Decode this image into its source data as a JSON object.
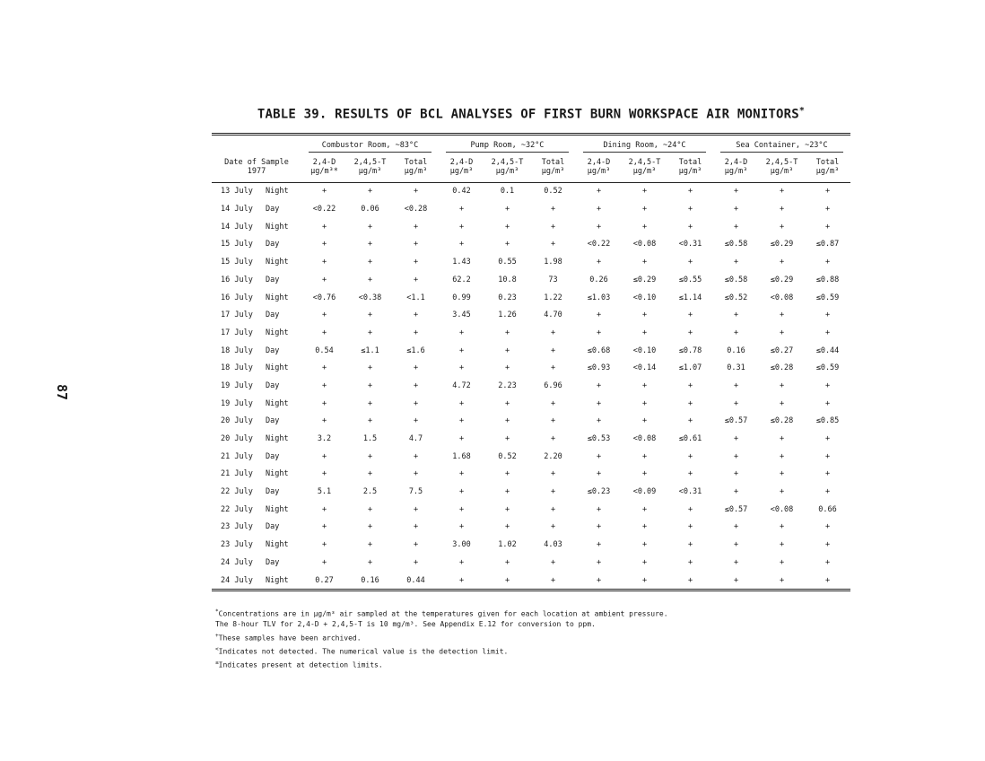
{
  "page_number": "87",
  "title": "TABLE 39.  RESULTS OF BCL ANALYSES OF FIRST BURN WORKSPACE AIR MONITORS",
  "title_mark": "*",
  "table": {
    "date_header": "Date of Sample",
    "date_year": "1977",
    "groups": [
      "Combustor Room, ~83°C",
      "Pump Room, ~32°C",
      "Dining Room, ~24°C",
      "Sea Container, ~23°C"
    ],
    "columns": [
      {
        "name": "2,4-D",
        "unit": "µg/m³*"
      },
      {
        "name": "2,4,5-T",
        "unit": "µg/m³"
      },
      {
        "name": "Total",
        "unit": "µg/m³"
      },
      {
        "name": "2,4-D",
        "unit": "µg/m³"
      },
      {
        "name": "2,4,5-T",
        "unit": "µg/m³"
      },
      {
        "name": "Total",
        "unit": "µg/m³"
      },
      {
        "name": "2,4-D",
        "unit": "µg/m³"
      },
      {
        "name": "2,4,5-T",
        "unit": "µg/m³"
      },
      {
        "name": "Total",
        "unit": "µg/m³"
      },
      {
        "name": "2,4-D",
        "unit": "µg/m³"
      },
      {
        "name": "2,4,5-T",
        "unit": "µg/m³"
      },
      {
        "name": "Total",
        "unit": "µg/m³"
      }
    ],
    "rows": [
      {
        "date": "13 July",
        "tod": "Night",
        "v": [
          "+",
          "+",
          "+",
          "0.42",
          "0.1",
          "0.52",
          "+",
          "+",
          "+",
          "+",
          "+",
          "+"
        ]
      },
      {
        "date": "14 July",
        "tod": "Day",
        "v": [
          "<0.22",
          "0.06",
          "<0.28",
          "+",
          "+",
          "+",
          "+",
          "+",
          "+",
          "+",
          "+",
          "+"
        ]
      },
      {
        "date": "14 July",
        "tod": "Night",
        "v": [
          "+",
          "+",
          "+",
          "+",
          "+",
          "+",
          "+",
          "+",
          "+",
          "+",
          "+",
          "+"
        ]
      },
      {
        "date": "15 July",
        "tod": "Day",
        "v": [
          "+",
          "+",
          "+",
          "+",
          "+",
          "+",
          "<0.22",
          "<0.08",
          "<0.31",
          "≤0.58",
          "≤0.29",
          "≤0.87"
        ]
      },
      {
        "date": "15 July",
        "tod": "Night",
        "v": [
          "+",
          "+",
          "+",
          "1.43",
          "0.55",
          "1.98",
          "+",
          "+",
          "+",
          "+",
          "+",
          "+"
        ]
      },
      {
        "date": "16 July",
        "tod": "Day",
        "v": [
          "+",
          "+",
          "+",
          "62.2",
          "10.8",
          "73",
          "0.26",
          "≤0.29",
          "≤0.55",
          "≤0.58",
          "≤0.29",
          "≤0.88"
        ]
      },
      {
        "date": "16 July",
        "tod": "Night",
        "v": [
          "<0.76",
          "<0.38",
          "<1.1",
          "0.99",
          "0.23",
          "1.22",
          "≤1.03",
          "<0.10",
          "≤1.14",
          "≤0.52",
          "<0.08",
          "≤0.59"
        ]
      },
      {
        "date": "17 July",
        "tod": "Day",
        "v": [
          "+",
          "+",
          "+",
          "3.45",
          "1.26",
          "4.70",
          "+",
          "+",
          "+",
          "+",
          "+",
          "+"
        ]
      },
      {
        "date": "17 July",
        "tod": "Night",
        "v": [
          "+",
          "+",
          "+",
          "+",
          "+",
          "+",
          "+",
          "+",
          "+",
          "+",
          "+",
          "+"
        ]
      },
      {
        "date": "18 July",
        "tod": "Day",
        "v": [
          "0.54",
          "≤1.1",
          "≤1.6",
          "+",
          "+",
          "+",
          "≤0.68",
          "<0.10",
          "≤0.78",
          "0.16",
          "≤0.27",
          "≤0.44"
        ]
      },
      {
        "date": "18 July",
        "tod": "Night",
        "v": [
          "+",
          "+",
          "+",
          "+",
          "+",
          "+",
          "≤0.93",
          "<0.14",
          "≤1.07",
          "0.31",
          "≤0.28",
          "≤0.59"
        ]
      },
      {
        "date": "19 July",
        "tod": "Day",
        "v": [
          "+",
          "+",
          "+",
          "4.72",
          "2.23",
          "6.96",
          "+",
          "+",
          "+",
          "+",
          "+",
          "+"
        ]
      },
      {
        "date": "19 July",
        "tod": "Night",
        "v": [
          "+",
          "+",
          "+",
          "+",
          "+",
          "+",
          "+",
          "+",
          "+",
          "+",
          "+",
          "+"
        ]
      },
      {
        "date": "20 July",
        "tod": "Day",
        "v": [
          "+",
          "+",
          "+",
          "+",
          "+",
          "+",
          "+",
          "+",
          "+",
          "≤0.57",
          "≤0.28",
          "≤0.85"
        ]
      },
      {
        "date": "20 July",
        "tod": "Night",
        "v": [
          "3.2",
          "1.5",
          "4.7",
          "+",
          "+",
          "+",
          "≤0.53",
          "<0.08",
          "≤0.61",
          "+",
          "+",
          "+"
        ]
      },
      {
        "date": "21 July",
        "tod": "Day",
        "v": [
          "+",
          "+",
          "+",
          "1.68",
          "0.52",
          "2.20",
          "+",
          "+",
          "+",
          "+",
          "+",
          "+"
        ]
      },
      {
        "date": "21 July",
        "tod": "Night",
        "v": [
          "+",
          "+",
          "+",
          "+",
          "+",
          "+",
          "+",
          "+",
          "+",
          "+",
          "+",
          "+"
        ]
      },
      {
        "date": "22 July",
        "tod": "Day",
        "v": [
          "5.1",
          "2.5",
          "7.5",
          "+",
          "+",
          "+",
          "≤0.23",
          "<0.09",
          "<0.31",
          "+",
          "+",
          "+"
        ]
      },
      {
        "date": "22 July",
        "tod": "Night",
        "v": [
          "+",
          "+",
          "+",
          "+",
          "+",
          "+",
          "+",
          "+",
          "+",
          "≤0.57",
          "<0.08",
          "0.66"
        ]
      },
      {
        "date": "23 July",
        "tod": "Day",
        "v": [
          "+",
          "+",
          "+",
          "+",
          "+",
          "+",
          "+",
          "+",
          "+",
          "+",
          "+",
          "+"
        ]
      },
      {
        "date": "23 July",
        "tod": "Night",
        "v": [
          "+",
          "+",
          "+",
          "3.00",
          "1.02",
          "4.03",
          "+",
          "+",
          "+",
          "+",
          "+",
          "+"
        ]
      },
      {
        "date": "24 July",
        "tod": "Day",
        "v": [
          "+",
          "+",
          "+",
          "+",
          "+",
          "+",
          "+",
          "+",
          "+",
          "+",
          "+",
          "+"
        ]
      },
      {
        "date": "24 July",
        "tod": "Night",
        "v": [
          "0.27",
          "0.16",
          "0.44",
          "+",
          "+",
          "+",
          "+",
          "+",
          "+",
          "+",
          "+",
          "+"
        ]
      }
    ]
  },
  "footnotes": [
    {
      "mark": "*",
      "lines": [
        "Concentrations are in µg/m³ air sampled at the temperatures given for each location at ambient pressure.",
        "The 8-hour TLV for 2,4-D + 2,4,5-T is 10 mg/m³.  See Appendix E.12 for conversion to ppm."
      ]
    },
    {
      "mark": "+",
      "lines": [
        "These samples have been archived."
      ]
    },
    {
      "mark": "<",
      "lines": [
        "Indicates not detected.  The numerical value is the detection limit."
      ]
    },
    {
      "mark": "≤",
      "lines": [
        "Indicates present at detection limits."
      ]
    }
  ]
}
